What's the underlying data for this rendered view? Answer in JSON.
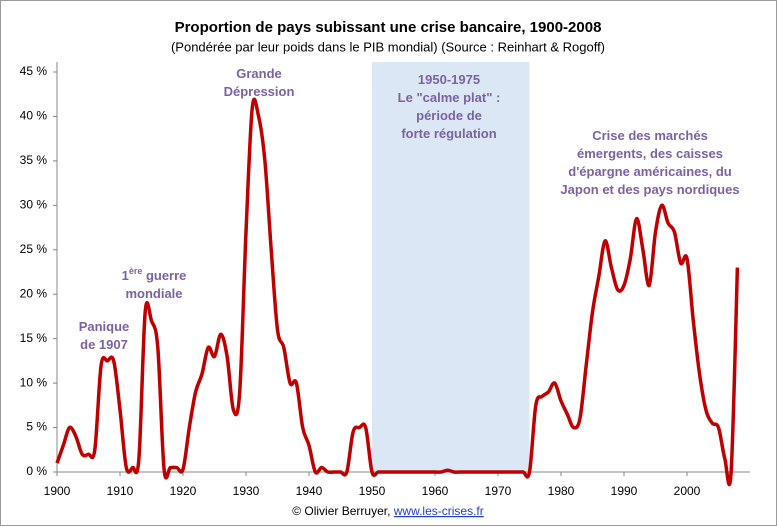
{
  "chart_data": {
    "type": "line",
    "title": "Proportion de pays subissant une crise bancaire, 1900-2008",
    "subtitle": "(Pondérée par leur poids dans le PIB mondial) (Source : Reinhart & Rogoff)",
    "x": [
      1900,
      1901,
      1902,
      1903,
      1904,
      1905,
      1906,
      1907,
      1908,
      1909,
      1910,
      1911,
      1912,
      1913,
      1914,
      1915,
      1916,
      1917,
      1918,
      1919,
      1920,
      1921,
      1922,
      1923,
      1924,
      1925,
      1926,
      1927,
      1928,
      1929,
      1930,
      1931,
      1932,
      1933,
      1934,
      1935,
      1936,
      1937,
      1938,
      1939,
      1940,
      1941,
      1942,
      1943,
      1944,
      1945,
      1946,
      1947,
      1948,
      1949,
      1950,
      1951,
      1952,
      1953,
      1954,
      1955,
      1956,
      1957,
      1958,
      1959,
      1960,
      1961,
      1962,
      1963,
      1964,
      1965,
      1966,
      1967,
      1968,
      1969,
      1970,
      1971,
      1972,
      1973,
      1974,
      1975,
      1976,
      1977,
      1978,
      1979,
      1980,
      1981,
      1982,
      1983,
      1984,
      1985,
      1986,
      1987,
      1988,
      1989,
      1990,
      1991,
      1992,
      1993,
      1994,
      1995,
      1996,
      1997,
      1998,
      1999,
      2000,
      2001,
      2002,
      2003,
      2004,
      2005,
      2006,
      2007,
      2008
    ],
    "series": [
      {
        "name": "Proportion",
        "color": "#c00000",
        "values": [
          1,
          3,
          5,
          4,
          2,
          2,
          2.5,
          12,
          12.5,
          12.5,
          7,
          0.5,
          0.5,
          1.5,
          18,
          17,
          14,
          0.3,
          0.5,
          0.5,
          0.3,
          5,
          9,
          11,
          14,
          13,
          15.5,
          13,
          7,
          9,
          27,
          41,
          40,
          35,
          25,
          16,
          14,
          10,
          10,
          5,
          3,
          0,
          0.5,
          0,
          0,
          0,
          0,
          4.5,
          5,
          5,
          0,
          0,
          0,
          0,
          0,
          0,
          0,
          0,
          0,
          0,
          0,
          0,
          0.2,
          0,
          0,
          0,
          0,
          0,
          0,
          0,
          0,
          0,
          0,
          0,
          0,
          0,
          7.5,
          8.5,
          9,
          10,
          8,
          6.5,
          5,
          6,
          12,
          18,
          22,
          26,
          23,
          20.5,
          21,
          24,
          28.5,
          25,
          21,
          27,
          30,
          28,
          27,
          23.5,
          24,
          17,
          11,
          7,
          5.5,
          5,
          1.5,
          0,
          23
        ]
      }
    ],
    "xlim": [
      1900,
      2010
    ],
    "xticks": [
      1900,
      1910,
      1920,
      1930,
      1940,
      1950,
      1960,
      1970,
      1980,
      1990,
      2000
    ],
    "ylim": [
      0,
      45
    ],
    "yticks": [
      {
        "value": 0,
        "label": "0 %"
      },
      {
        "value": 5,
        "label": "5 %"
      },
      {
        "value": 10,
        "label": "10 %"
      },
      {
        "value": 15,
        "label": "15 %"
      },
      {
        "value": 20,
        "label": "20 %"
      },
      {
        "value": 25,
        "label": "25 %"
      },
      {
        "value": 30,
        "label": "30 %"
      },
      {
        "value": 35,
        "label": "35 %"
      },
      {
        "value": 40,
        "label": "40 %"
      },
      {
        "value": 45,
        "label": "45 %"
      }
    ],
    "grid": false,
    "shaded_period": {
      "from": 1950,
      "to": 1975,
      "color": "#dbe7f4"
    },
    "annotations": [
      {
        "lines": [
          [
            {
              "text": "Panique"
            }
          ],
          [
            {
              "text": "de 1907"
            }
          ]
        ]
      },
      {
        "lines": [
          [
            {
              "text": "1"
            },
            {
              "text": "ère",
              "sup": true
            },
            {
              "text": " guerre"
            }
          ],
          [
            {
              "text": "mondiale"
            }
          ]
        ]
      },
      {
        "lines": [
          [
            {
              "text": "Grande"
            }
          ],
          [
            {
              "text": "Dépression"
            }
          ]
        ]
      },
      {
        "lines": [
          [
            {
              "text": "1950-1975"
            }
          ],
          [
            {
              "text": "Le \"calme plat\" :"
            }
          ],
          [
            {
              "text": "période de"
            }
          ],
          [
            {
              "text": "forte régulation"
            }
          ]
        ]
      },
      {
        "lines": [
          [
            {
              "text": "Crise des marchés"
            }
          ],
          [
            {
              "text": "émergents, des caisses"
            }
          ],
          [
            {
              "text": "d'épargne américaines, du"
            }
          ],
          [
            {
              "text": "Japon et des pays nordiques"
            }
          ]
        ]
      }
    ],
    "footer": "© Olivier Berruyer, ",
    "footer_link": "www.les-crises.fr"
  }
}
